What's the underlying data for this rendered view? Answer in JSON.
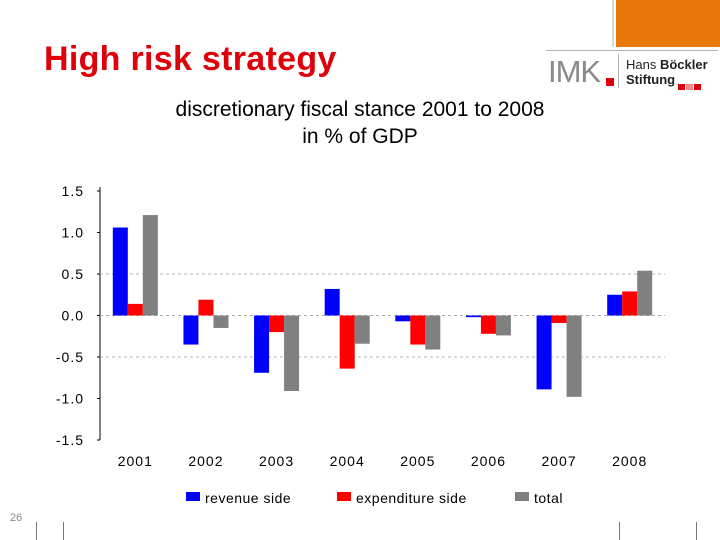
{
  "slide": {
    "title": "High risk strategy",
    "number": "26"
  },
  "logo": {
    "imk": "IMK",
    "line1": "Hans ",
    "line1_bold": "Böckler",
    "line2": "Stiftung"
  },
  "colors": {
    "accent": "#e8780a",
    "title_red": "#e0000a",
    "revenue": "#0000ff",
    "expenditure": "#ff0000",
    "total": "#808080",
    "grid": "#b0b0b0"
  },
  "chart_data": {
    "type": "bar",
    "title": "discretionary fiscal stance 2001 to 2008",
    "subtitle": "in % of GDP",
    "categories": [
      "2001",
      "2002",
      "2003",
      "2004",
      "2005",
      "2006",
      "2007",
      "2008"
    ],
    "series": [
      {
        "name": "revenue side",
        "color": "#0000ff",
        "values": [
          1.06,
          -0.35,
          -0.69,
          0.32,
          -0.07,
          -0.02,
          -0.89,
          0.25
        ]
      },
      {
        "name": "expenditure side",
        "color": "#ff0000",
        "values": [
          0.14,
          0.19,
          -0.2,
          -0.64,
          -0.35,
          -0.22,
          -0.09,
          0.29
        ]
      },
      {
        "name": "total",
        "color": "#808080",
        "values": [
          1.21,
          -0.15,
          -0.91,
          -0.34,
          -0.41,
          -0.24,
          -0.98,
          0.54
        ]
      }
    ],
    "yticks": [
      "1.5",
      "1.0",
      "0.5",
      "0.0",
      "-0.5",
      "-1.0",
      "-1.5"
    ],
    "ylim": [
      -1.5,
      1.5
    ],
    "xlabel": "",
    "ylabel": "",
    "grid": "dashed at 0.5, 0.0, -0.5",
    "legend": "bottom"
  }
}
